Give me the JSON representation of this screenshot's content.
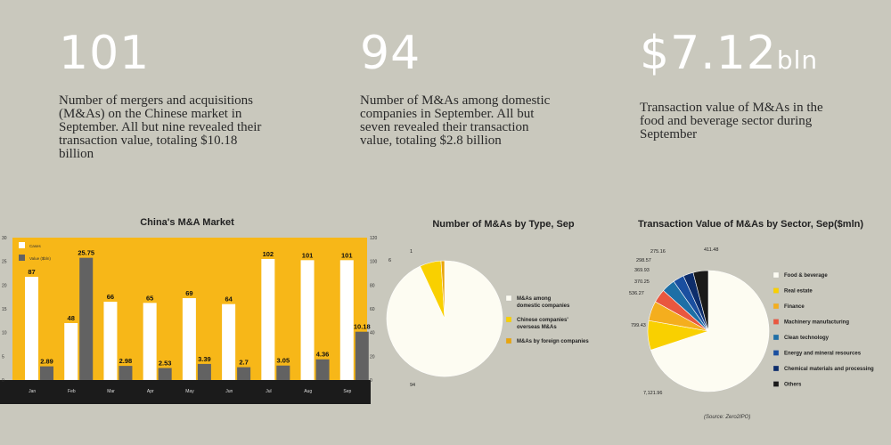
{
  "stats": [
    {
      "value": "101",
      "unit": "",
      "text": "Number of mergers and acquisitions (M&As) on the Chinese market in September. All but nine revealed their transaction value, totaling $10.18 billion"
    },
    {
      "value": "94",
      "unit": "",
      "text": "Number of M&As among domestic companies in September. All but seven revealed their transaction value, totaling $2.8 billion"
    },
    {
      "value": "$7.12",
      "unit": "bln",
      "text": "Transaction value of M&As in the food and beverage sector during September"
    }
  ],
  "chart_data": [
    {
      "type": "bar",
      "title": "China's M&A Market",
      "categories": [
        "Jan",
        "Feb",
        "Mar",
        "Apr",
        "May",
        "Jun",
        "Jul",
        "Aug",
        "Sep"
      ],
      "series": [
        {
          "name": "Cases",
          "axis": "right",
          "values": [
            87,
            48,
            66,
            65,
            69,
            64,
            102,
            101,
            101
          ],
          "color": "#ffffff"
        },
        {
          "name": "Value ($bln)",
          "axis": "left",
          "values": [
            2.89,
            25.75,
            2.98,
            2.53,
            3.39,
            2.7,
            3.05,
            4.36,
            10.18
          ],
          "color": "#626262"
        }
      ],
      "left_axis": {
        "ticks": [
          0,
          5,
          10,
          15,
          20,
          25,
          30
        ],
        "ylim": [
          0,
          30
        ]
      },
      "right_axis": {
        "ticks": [
          0,
          20,
          40,
          60,
          80,
          100,
          120
        ],
        "ylim": [
          0,
          120
        ]
      },
      "grid": false,
      "legend": "top-left",
      "background": "#f7b718"
    },
    {
      "type": "pie",
      "title": "Number of M&As by Type, Sep",
      "labels": [
        "M&As among domestic companies",
        "Chinese companies' overseas M&As",
        "M&As by foreign companies"
      ],
      "values": [
        94,
        6,
        1
      ],
      "colors": [
        "#fdfcf2",
        "#f9d000",
        "#e9a50d"
      ],
      "legend": "right"
    },
    {
      "type": "pie",
      "title": "Transaction Value of M&As by Sector, Sep($mln)",
      "labels": [
        "Food & beverage",
        "Real estate",
        "Finance",
        "Machinery manufacturing",
        "Clean technology",
        "Energy and mineral resources",
        "Chemical materials and processing",
        "Others"
      ],
      "values": [
        7121.96,
        799.43,
        536.27,
        370.25,
        369.93,
        298.57,
        275.16,
        411.48
      ],
      "value_labels": [
        "7,121.96",
        "799.43",
        "536.27",
        "370.25",
        "369.93",
        "298.57",
        "275.16",
        "411.48"
      ],
      "colors": [
        "#fdfcf2",
        "#f9d000",
        "#f4ae1e",
        "#e9573f",
        "#1e6fa6",
        "#1a4fa0",
        "#0d2d6b",
        "#1a1a1a"
      ],
      "legend": "right"
    }
  ],
  "source": "(Source: Zero2IPO)"
}
